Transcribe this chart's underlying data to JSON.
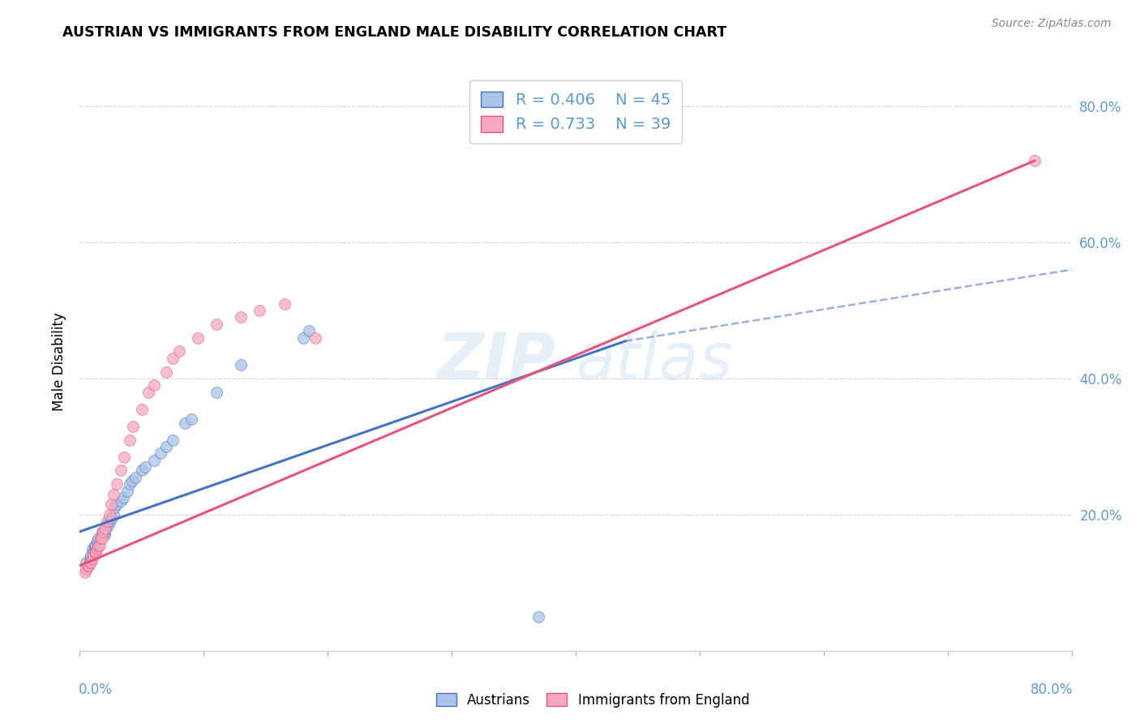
{
  "title": "AUSTRIAN VS IMMIGRANTS FROM ENGLAND MALE DISABILITY CORRELATION CHART",
  "source": "Source: ZipAtlas.com",
  "ylabel": "Male Disability",
  "xlim": [
    0.0,
    0.8
  ],
  "ylim": [
    0.0,
    0.85
  ],
  "legend_r1": "0.406",
  "legend_n1": "45",
  "legend_r2": "0.733",
  "legend_n2": "39",
  "color_austrians": "#aac4e8",
  "color_england": "#f5a8bf",
  "color_line_austrians": "#4472c4",
  "color_line_england": "#e8537a",
  "color_axis_labels": "#5b9bd5",
  "watermark_zip": "ZIP",
  "watermark_atlas": "atlas",
  "austrians_x": [
    0.005,
    0.007,
    0.008,
    0.009,
    0.01,
    0.011,
    0.012,
    0.012,
    0.013,
    0.014,
    0.015,
    0.015,
    0.017,
    0.018,
    0.018,
    0.02,
    0.02,
    0.021,
    0.022,
    0.023,
    0.024,
    0.025,
    0.026,
    0.027,
    0.028,
    0.03,
    0.033,
    0.035,
    0.038,
    0.04,
    0.042,
    0.045,
    0.05,
    0.053,
    0.06,
    0.065,
    0.07,
    0.075,
    0.085,
    0.09,
    0.11,
    0.13,
    0.18,
    0.185,
    0.37
  ],
  "austrians_y": [
    0.13,
    0.125,
    0.135,
    0.14,
    0.15,
    0.145,
    0.15,
    0.155,
    0.155,
    0.16,
    0.155,
    0.165,
    0.165,
    0.17,
    0.175,
    0.17,
    0.175,
    0.18,
    0.185,
    0.185,
    0.19,
    0.195,
    0.195,
    0.2,
    0.21,
    0.215,
    0.22,
    0.225,
    0.235,
    0.245,
    0.25,
    0.255,
    0.265,
    0.27,
    0.28,
    0.29,
    0.3,
    0.31,
    0.335,
    0.34,
    0.38,
    0.42,
    0.46,
    0.47,
    0.05
  ],
  "england_x": [
    0.004,
    0.005,
    0.006,
    0.007,
    0.008,
    0.009,
    0.01,
    0.011,
    0.012,
    0.013,
    0.014,
    0.015,
    0.016,
    0.017,
    0.018,
    0.019,
    0.02,
    0.022,
    0.024,
    0.025,
    0.027,
    0.03,
    0.033,
    0.036,
    0.04,
    0.043,
    0.05,
    0.055,
    0.06,
    0.07,
    0.075,
    0.08,
    0.095,
    0.11,
    0.13,
    0.145,
    0.165,
    0.19,
    0.77
  ],
  "england_y": [
    0.115,
    0.12,
    0.125,
    0.125,
    0.13,
    0.13,
    0.135,
    0.14,
    0.145,
    0.145,
    0.15,
    0.155,
    0.155,
    0.165,
    0.165,
    0.175,
    0.18,
    0.19,
    0.2,
    0.215,
    0.23,
    0.245,
    0.265,
    0.285,
    0.31,
    0.33,
    0.355,
    0.38,
    0.39,
    0.41,
    0.43,
    0.44,
    0.46,
    0.48,
    0.49,
    0.5,
    0.51,
    0.46,
    0.72
  ],
  "line_aus_x0": 0.0,
  "line_aus_y0": 0.175,
  "line_aus_x1": 0.44,
  "line_aus_y1": 0.455,
  "line_aus_dash_x1": 0.8,
  "line_aus_dash_y1": 0.56,
  "line_eng_x0": 0.0,
  "line_eng_y0": 0.125,
  "line_eng_x1": 0.77,
  "line_eng_y1": 0.72
}
